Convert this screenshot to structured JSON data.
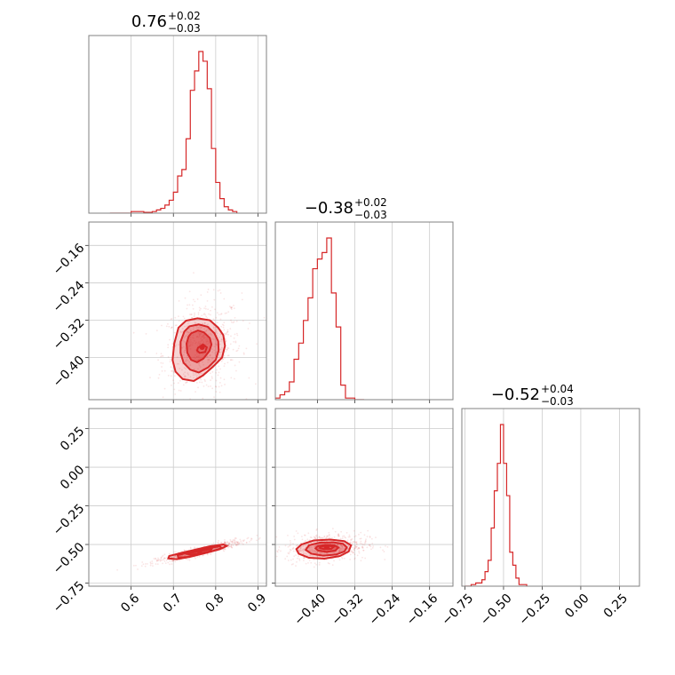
{
  "chart_data": {
    "type": "corner",
    "color": "#d62728",
    "parameters": [
      {
        "title_value": "0.76",
        "title_plus": "+0.02",
        "title_minus": "−0.03",
        "median": 0.76,
        "err_plus": 0.02,
        "err_minus": 0.03,
        "range": [
          0.5,
          0.92
        ],
        "ticks": [
          0.6,
          0.7,
          0.8,
          0.9
        ],
        "tick_labels": [
          "0.6",
          "0.7",
          "0.8",
          "0.9"
        ]
      },
      {
        "title_value": "−0.38",
        "title_plus": "+0.02",
        "title_minus": "−0.03",
        "median": -0.38,
        "err_plus": 0.02,
        "err_minus": 0.03,
        "range": [
          -0.49,
          -0.11
        ],
        "ticks": [
          -0.4,
          -0.32,
          -0.24,
          -0.16
        ],
        "tick_labels": [
          "−0.40",
          "−0.32",
          "−0.24",
          "−0.16"
        ]
      },
      {
        "title_value": "−0.52",
        "title_plus": "+0.04",
        "title_minus": "−0.03",
        "median": -0.52,
        "err_plus": 0.04,
        "err_minus": 0.03,
        "range": [
          -0.77,
          0.38
        ],
        "ticks": [
          -0.75,
          -0.5,
          -0.25,
          0.0,
          0.25
        ],
        "tick_labels": [
          "−0.75",
          "−0.50",
          "−0.25",
          "0.00",
          "0.25"
        ]
      }
    ],
    "histograms": [
      {
        "param": 0,
        "bin_edges": [
          0.55,
          0.6,
          0.63,
          0.65,
          0.66,
          0.67,
          0.68,
          0.69,
          0.7,
          0.71,
          0.72,
          0.73,
          0.74,
          0.75,
          0.76,
          0.77,
          0.78,
          0.79,
          0.8,
          0.81,
          0.82,
          0.83,
          0.84,
          0.85
        ],
        "counts": [
          0,
          1,
          0.5,
          1,
          2,
          3,
          5,
          8,
          13,
          23,
          27,
          46,
          76,
          88,
          100,
          94,
          77,
          40,
          19,
          9,
          4,
          2,
          1
        ]
      },
      {
        "param": 1,
        "bin_edges": [
          -0.49,
          -0.48,
          -0.47,
          -0.46,
          -0.45,
          -0.44,
          -0.43,
          -0.42,
          -0.41,
          -0.4,
          -0.39,
          -0.38,
          -0.37,
          -0.36,
          -0.35,
          -0.34,
          -0.33,
          -0.32,
          -0.31,
          -0.3
        ],
        "counts": [
          1,
          3,
          5,
          11,
          25,
          35,
          49,
          63,
          81,
          87,
          91,
          100,
          66,
          45,
          9,
          1,
          1,
          0,
          0
        ]
      },
      {
        "param": 2,
        "bin_edges": [
          -0.75,
          -0.71,
          -0.68,
          -0.66,
          -0.64,
          -0.62,
          -0.6,
          -0.58,
          -0.56,
          -0.54,
          -0.52,
          -0.5,
          -0.48,
          -0.46,
          -0.44,
          -0.42,
          -0.4,
          -0.38,
          -0.35
        ],
        "counts": [
          0,
          1,
          2,
          2,
          4,
          9,
          16,
          36,
          59,
          76,
          100,
          76,
          56,
          21,
          13,
          5,
          1,
          1
        ]
      }
    ],
    "scatter_panels": [
      {
        "x_param": 0,
        "y_param": 1,
        "contours": [
          [
            [
              0.742,
              -0.348
            ],
            [
              0.758,
              -0.342
            ],
            [
              0.772,
              -0.346
            ],
            [
              0.786,
              -0.358
            ],
            [
              0.79,
              -0.372
            ],
            [
              0.785,
              -0.386
            ],
            [
              0.771,
              -0.402
            ],
            [
              0.756,
              -0.41
            ],
            [
              0.742,
              -0.405
            ],
            [
              0.733,
              -0.39
            ],
            [
              0.731,
              -0.37
            ],
            [
              0.736,
              -0.355
            ]
          ],
          [
            [
              0.726,
              -0.344
            ],
            [
              0.738,
              -0.333
            ],
            [
              0.76,
              -0.329
            ],
            [
              0.781,
              -0.334
            ],
            [
              0.797,
              -0.348
            ],
            [
              0.806,
              -0.365
            ],
            [
              0.807,
              -0.385
            ],
            [
              0.8,
              -0.405
            ],
            [
              0.782,
              -0.421
            ],
            [
              0.76,
              -0.432
            ],
            [
              0.74,
              -0.426
            ],
            [
              0.724,
              -0.411
            ],
            [
              0.717,
              -0.39
            ],
            [
              0.717,
              -0.366
            ]
          ],
          [
            [
              0.712,
              -0.336
            ],
            [
              0.73,
              -0.321
            ],
            [
              0.757,
              -0.316
            ],
            [
              0.786,
              -0.32
            ],
            [
              0.806,
              -0.336
            ],
            [
              0.818,
              -0.352
            ],
            [
              0.822,
              -0.375
            ],
            [
              0.815,
              -0.4
            ],
            [
              0.793,
              -0.42
            ],
            [
              0.77,
              -0.438
            ],
            [
              0.748,
              -0.45
            ],
            [
              0.722,
              -0.446
            ],
            [
              0.705,
              -0.43
            ],
            [
              0.698,
              -0.405
            ],
            [
              0.702,
              -0.37
            ]
          ],
          [
            [
              0.758,
              -0.379
            ],
            [
              0.77,
              -0.372
            ],
            [
              0.779,
              -0.378
            ],
            [
              0.775,
              -0.388
            ],
            [
              0.762,
              -0.39
            ],
            [
              0.756,
              -0.385
            ]
          ]
        ],
        "peak": [
          0.768,
          -0.378
        ]
      },
      {
        "x_param": 0,
        "y_param": 2,
        "contours": [
          [
            [
              0.73,
              -0.56
            ],
            [
              0.752,
              -0.548
            ],
            [
              0.776,
              -0.535
            ],
            [
              0.79,
              -0.53
            ],
            [
              0.786,
              -0.545
            ],
            [
              0.765,
              -0.558
            ],
            [
              0.742,
              -0.566
            ]
          ],
          [
            [
              0.71,
              -0.57
            ],
            [
              0.73,
              -0.556
            ],
            [
              0.758,
              -0.54
            ],
            [
              0.785,
              -0.523
            ],
            [
              0.81,
              -0.512
            ],
            [
              0.814,
              -0.524
            ],
            [
              0.792,
              -0.543
            ],
            [
              0.762,
              -0.562
            ],
            [
              0.733,
              -0.58
            ],
            [
              0.712,
              -0.585
            ]
          ],
          [
            [
              0.69,
              -0.575
            ],
            [
              0.718,
              -0.555
            ],
            [
              0.75,
              -0.535
            ],
            [
              0.786,
              -0.512
            ],
            [
              0.818,
              -0.5
            ],
            [
              0.826,
              -0.51
            ],
            [
              0.81,
              -0.53
            ],
            [
              0.775,
              -0.556
            ],
            [
              0.74,
              -0.58
            ],
            [
              0.708,
              -0.595
            ],
            [
              0.688,
              -0.59
            ]
          ]
        ],
        "peak": [
          0.762,
          -0.544
        ]
      },
      {
        "x_param": 1,
        "y_param": 2,
        "contours": [
          [
            [
              -0.4,
              -0.512
            ],
            [
              -0.383,
              -0.502
            ],
            [
              -0.364,
              -0.505
            ],
            [
              -0.355,
              -0.52
            ],
            [
              -0.362,
              -0.54
            ],
            [
              -0.38,
              -0.548
            ],
            [
              -0.398,
              -0.54
            ],
            [
              -0.404,
              -0.525
            ]
          ],
          [
            [
              -0.418,
              -0.505
            ],
            [
              -0.395,
              -0.488
            ],
            [
              -0.366,
              -0.486
            ],
            [
              -0.345,
              -0.496
            ],
            [
              -0.337,
              -0.518
            ],
            [
              -0.342,
              -0.545
            ],
            [
              -0.36,
              -0.565
            ],
            [
              -0.388,
              -0.572
            ],
            [
              -0.413,
              -0.56
            ],
            [
              -0.425,
              -0.535
            ]
          ],
          [
            [
              -0.434,
              -0.5
            ],
            [
              -0.408,
              -0.474
            ],
            [
              -0.372,
              -0.468
            ],
            [
              -0.343,
              -0.478
            ],
            [
              -0.328,
              -0.505
            ],
            [
              -0.333,
              -0.545
            ],
            [
              -0.352,
              -0.575
            ],
            [
              -0.385,
              -0.592
            ],
            [
              -0.418,
              -0.586
            ],
            [
              -0.44,
              -0.56
            ],
            [
              -0.445,
              -0.53
            ]
          ],
          [
            [
              -0.392,
              -0.512
            ],
            [
              -0.376,
              -0.508
            ],
            [
              -0.365,
              -0.515
            ],
            [
              -0.37,
              -0.528
            ],
            [
              -0.386,
              -0.53
            ],
            [
              -0.395,
              -0.522
            ]
          ]
        ],
        "peak": [
          -0.38,
          -0.518
        ]
      }
    ]
  }
}
